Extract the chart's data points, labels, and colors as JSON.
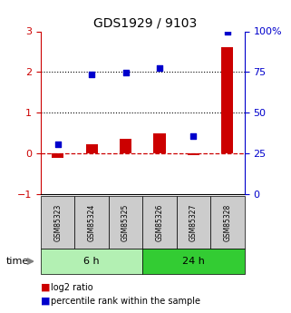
{
  "title": "GDS1929 / 9103",
  "samples": [
    "GSM85323",
    "GSM85324",
    "GSM85325",
    "GSM85326",
    "GSM85327",
    "GSM85328"
  ],
  "log2_ratio": [
    -0.1,
    0.22,
    0.35,
    0.5,
    -0.05,
    2.62
  ],
  "percentile_rank": [
    0.22,
    1.93,
    1.98,
    2.1,
    0.42,
    2.98
  ],
  "ylim_left": [
    -1,
    3
  ],
  "ylim_right": [
    0,
    100
  ],
  "yticks_left": [
    -1,
    0,
    1,
    2,
    3
  ],
  "yticks_right": [
    0,
    25,
    50,
    75,
    100
  ],
  "groups": [
    {
      "label": "6 h",
      "samples": [
        0,
        1,
        2
      ],
      "color": "#b3f0b3"
    },
    {
      "label": "24 h",
      "samples": [
        3,
        4,
        5
      ],
      "color": "#33cc33"
    }
  ],
  "bar_color": "#cc0000",
  "dot_color": "#0000cc",
  "zero_line_color": "#cc0000",
  "bg_color": "#ffffff",
  "sample_box_color": "#cccccc",
  "legend_items": [
    {
      "color": "#cc0000",
      "label": "log2 ratio"
    },
    {
      "color": "#0000cc",
      "label": "percentile rank within the sample"
    }
  ]
}
